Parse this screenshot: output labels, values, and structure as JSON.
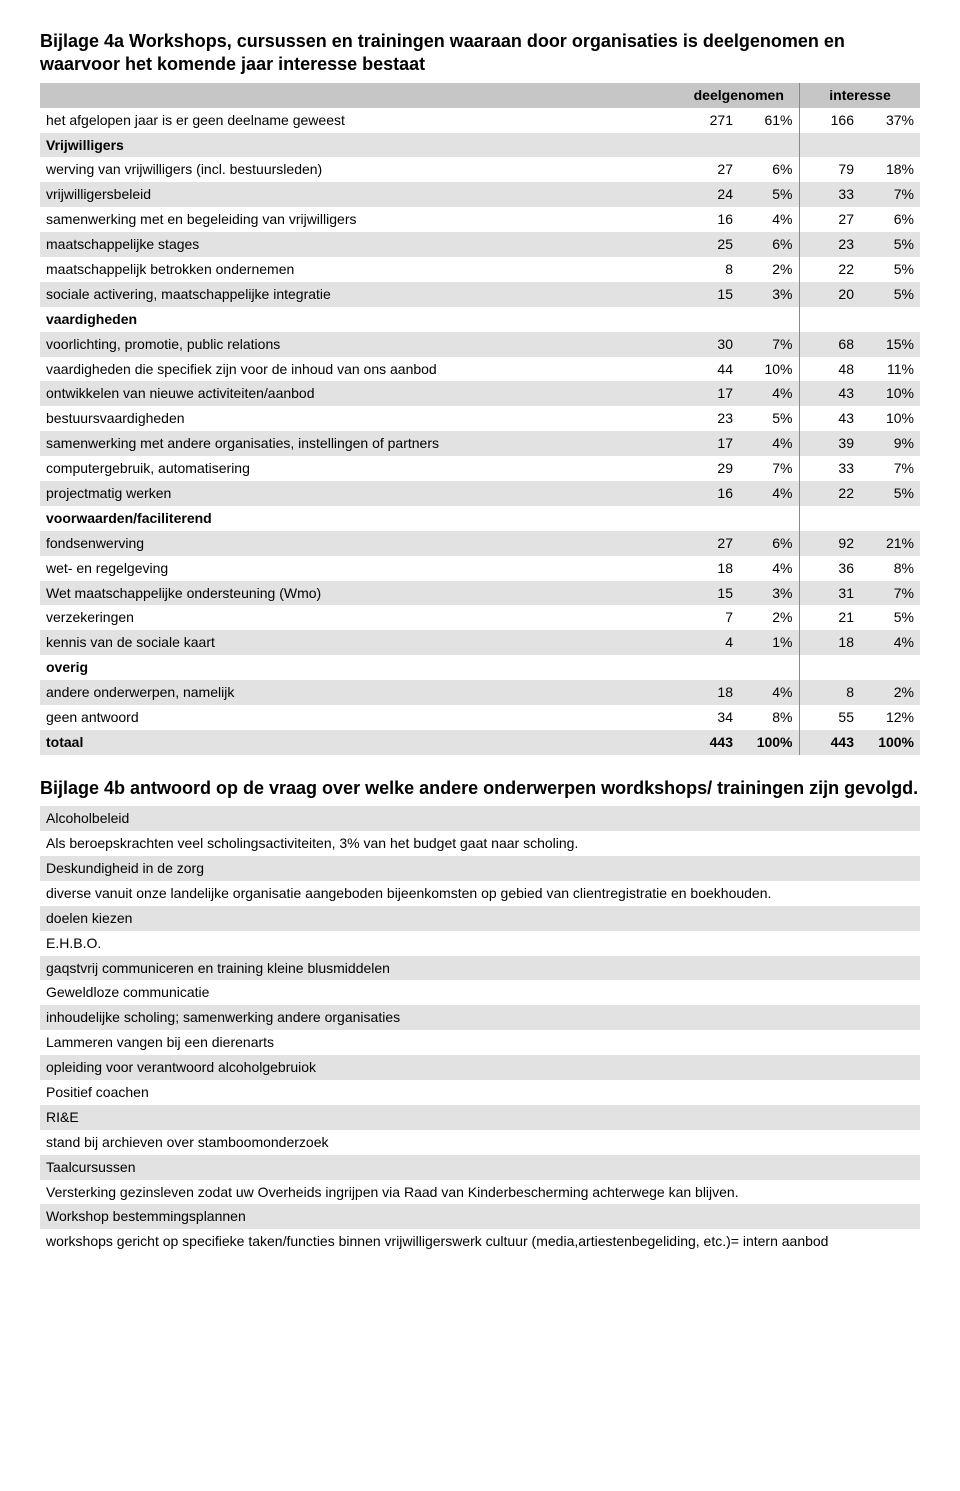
{
  "title_4a": "Bijlage 4a Workshops, cursussen en trainingen waaraan door organisaties is deelgenomen en waarvoor het komende jaar interesse bestaat",
  "col_deelgenomen": "deelgenomen",
  "col_interesse": "interesse",
  "rows4a": [
    {
      "type": "data",
      "shade": false,
      "label": "het afgelopen jaar is er geen deelname geweest",
      "d_n": "271",
      "d_p": "61%",
      "i_n": "166",
      "i_p": "37%"
    },
    {
      "type": "section",
      "shade": true,
      "label": "Vrijwilligers"
    },
    {
      "type": "data",
      "shade": false,
      "label": "werving van vrijwilligers (incl. bestuursleden)",
      "d_n": "27",
      "d_p": "6%",
      "i_n": "79",
      "i_p": "18%"
    },
    {
      "type": "data",
      "shade": true,
      "label": "vrijwilligersbeleid",
      "d_n": "24",
      "d_p": "5%",
      "i_n": "33",
      "i_p": "7%"
    },
    {
      "type": "data",
      "shade": false,
      "label": "samenwerking met en begeleiding van vrijwilligers",
      "d_n": "16",
      "d_p": "4%",
      "i_n": "27",
      "i_p": "6%"
    },
    {
      "type": "data",
      "shade": true,
      "label": "maatschappelijke stages",
      "d_n": "25",
      "d_p": "6%",
      "i_n": "23",
      "i_p": "5%"
    },
    {
      "type": "data",
      "shade": false,
      "label": "maatschappelijk betrokken ondernemen",
      "d_n": "8",
      "d_p": "2%",
      "i_n": "22",
      "i_p": "5%"
    },
    {
      "type": "data",
      "shade": true,
      "label": "sociale activering, maatschappelijke integratie",
      "d_n": "15",
      "d_p": "3%",
      "i_n": "20",
      "i_p": "5%"
    },
    {
      "type": "section",
      "shade": false,
      "label": "vaardigheden"
    },
    {
      "type": "data",
      "shade": true,
      "label": "voorlichting, promotie, public relations",
      "d_n": "30",
      "d_p": "7%",
      "i_n": "68",
      "i_p": "15%"
    },
    {
      "type": "data",
      "shade": false,
      "label": "vaardigheden die specifiek zijn voor de inhoud van ons aanbod",
      "d_n": "44",
      "d_p": "10%",
      "i_n": "48",
      "i_p": "11%"
    },
    {
      "type": "data",
      "shade": true,
      "label": "ontwikkelen van nieuwe activiteiten/aanbod",
      "d_n": "17",
      "d_p": "4%",
      "i_n": "43",
      "i_p": "10%"
    },
    {
      "type": "data",
      "shade": false,
      "label": "bestuursvaardigheden",
      "d_n": "23",
      "d_p": "5%",
      "i_n": "43",
      "i_p": "10%"
    },
    {
      "type": "data",
      "shade": true,
      "label": "samenwerking met andere organisaties, instellingen of partners",
      "d_n": "17",
      "d_p": "4%",
      "i_n": "39",
      "i_p": "9%"
    },
    {
      "type": "data",
      "shade": false,
      "label": "computergebruik, automatisering",
      "d_n": "29",
      "d_p": "7%",
      "i_n": "33",
      "i_p": "7%"
    },
    {
      "type": "data",
      "shade": true,
      "label": "projectmatig werken",
      "d_n": "16",
      "d_p": "4%",
      "i_n": "22",
      "i_p": "5%"
    },
    {
      "type": "section",
      "shade": false,
      "label": "voorwaarden/faciliterend"
    },
    {
      "type": "data",
      "shade": true,
      "label": "fondsenwerving",
      "d_n": "27",
      "d_p": "6%",
      "i_n": "92",
      "i_p": "21%"
    },
    {
      "type": "data",
      "shade": false,
      "label": "wet- en regelgeving",
      "d_n": "18",
      "d_p": "4%",
      "i_n": "36",
      "i_p": "8%"
    },
    {
      "type": "data",
      "shade": true,
      "label": "Wet maatschappelijke ondersteuning (Wmo)",
      "d_n": "15",
      "d_p": "3%",
      "i_n": "31",
      "i_p": "7%"
    },
    {
      "type": "data",
      "shade": false,
      "label": "verzekeringen",
      "d_n": "7",
      "d_p": "2%",
      "i_n": "21",
      "i_p": "5%"
    },
    {
      "type": "data",
      "shade": true,
      "label": "kennis van de sociale kaart",
      "d_n": "4",
      "d_p": "1%",
      "i_n": "18",
      "i_p": "4%"
    },
    {
      "type": "section",
      "shade": false,
      "label": "overig"
    },
    {
      "type": "data",
      "shade": true,
      "label": "andere onderwerpen, namelijk",
      "d_n": "18",
      "d_p": "4%",
      "i_n": "8",
      "i_p": "2%"
    },
    {
      "type": "data",
      "shade": false,
      "label": "geen antwoord",
      "d_n": "34",
      "d_p": "8%",
      "i_n": "55",
      "i_p": "12%"
    },
    {
      "type": "data",
      "shade": true,
      "label": "totaal",
      "bold": true,
      "d_n": "443",
      "d_p": "100%",
      "i_n": "443",
      "i_p": "100%"
    }
  ],
  "title_4b": "Bijlage 4b antwoord op de vraag over welke andere onderwerpen wordkshops/ trainingen zijn gevolgd.",
  "rows4b": [
    {
      "shade": true,
      "text": "Alcoholbeleid"
    },
    {
      "shade": false,
      "text": "Als beroepskrachten veel scholingsactiviteiten, 3% van het budget gaat naar scholing."
    },
    {
      "shade": true,
      "text": "Deskundigheid in de zorg"
    },
    {
      "shade": false,
      "text": "diverse vanuit onze landelijke organisatie aangeboden bijeenkomsten op gebied van clientregistratie en boekhouden."
    },
    {
      "shade": true,
      "text": "doelen kiezen"
    },
    {
      "shade": false,
      "text": "E.H.B.O."
    },
    {
      "shade": true,
      "text": "gaqstvrij communiceren en training kleine blusmiddelen"
    },
    {
      "shade": false,
      "text": "Geweldloze communicatie"
    },
    {
      "shade": true,
      "text": "inhoudelijke scholing; samenwerking andere organisaties"
    },
    {
      "shade": false,
      "text": "Lammeren vangen bij een dierenarts"
    },
    {
      "shade": true,
      "text": "opleiding voor verantwoord alcoholgebruiok"
    },
    {
      "shade": false,
      "text": "Positief coachen"
    },
    {
      "shade": true,
      "text": "RI&E"
    },
    {
      "shade": false,
      "text": "stand bij archieven over stamboomonderzoek"
    },
    {
      "shade": true,
      "text": "Taalcursussen"
    },
    {
      "shade": false,
      "text": "Versterking gezinsleven zodat uw Overheids ingrijpen via Raad van Kinderbescherming achterwege kan blijven."
    },
    {
      "shade": true,
      "text": "Workshop bestemmingsplannen"
    },
    {
      "shade": false,
      "text": "workshops gericht op specifieke taken/functies binnen vrijwilligerswerk cultuur (media,artiestenbegeliding, etc.)= intern aanbod"
    }
  ]
}
